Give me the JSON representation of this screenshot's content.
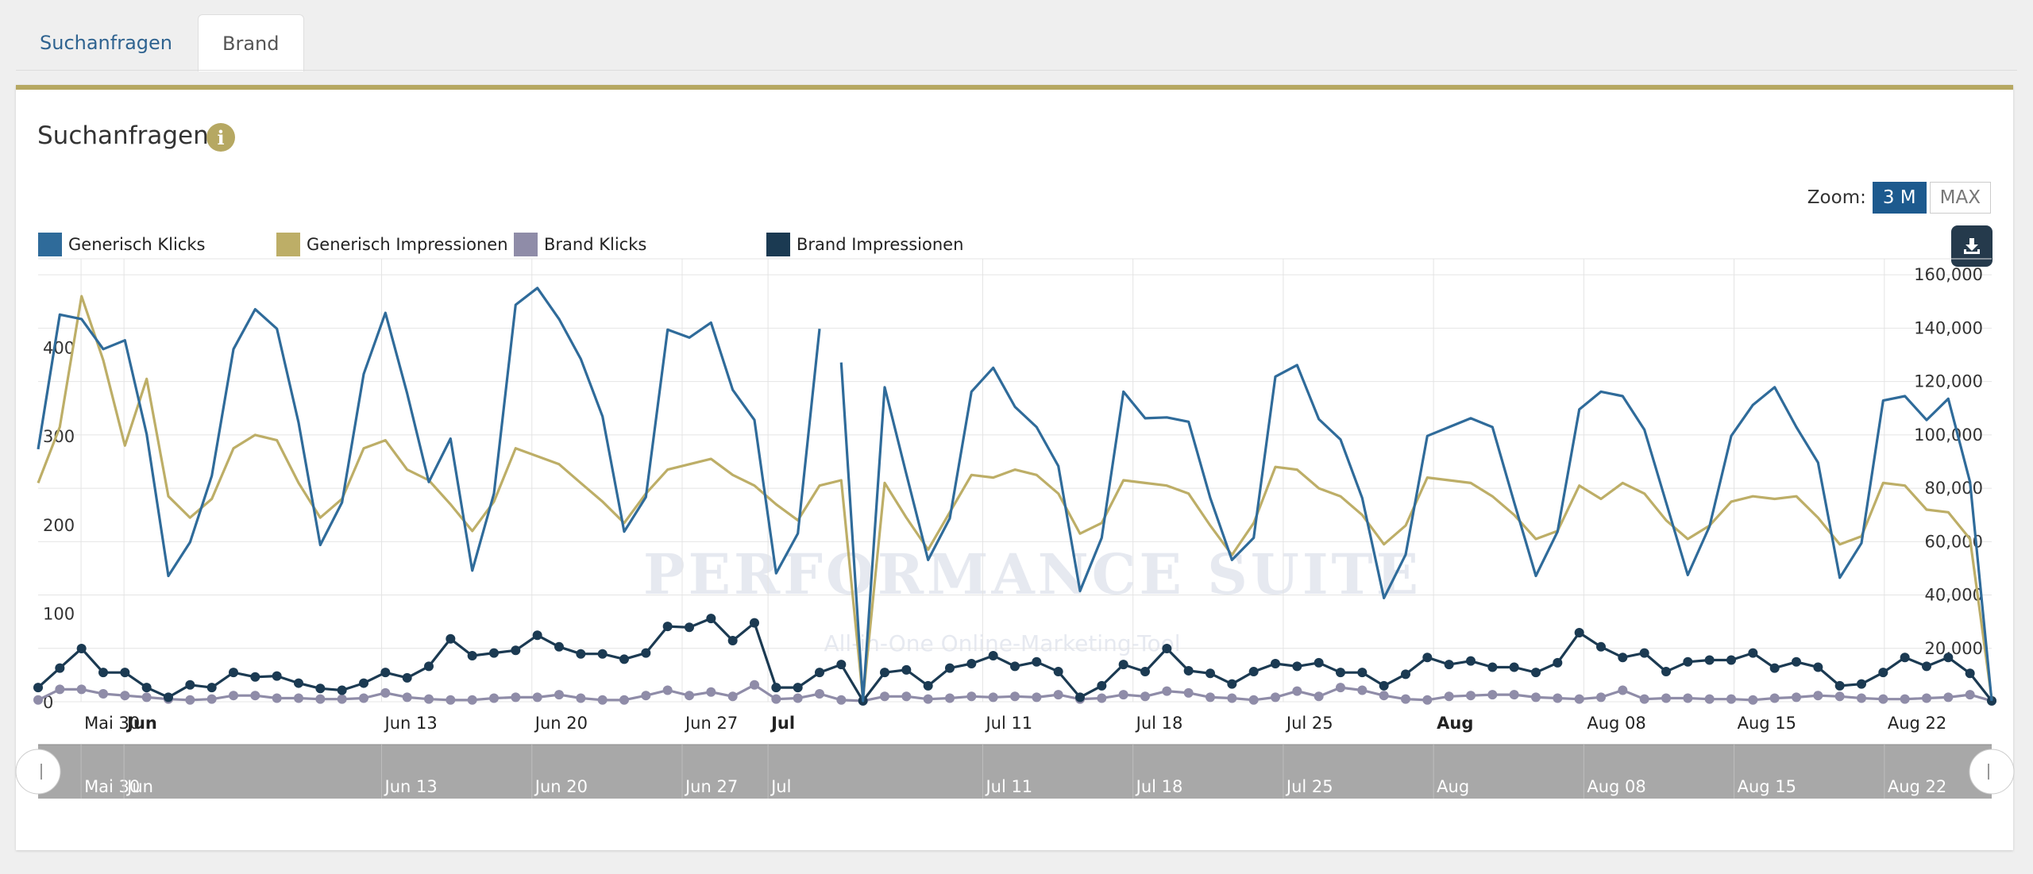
{
  "tabs": [
    {
      "label": "Suchanfragen",
      "active": false
    },
    {
      "label": "Brand",
      "active": true
    }
  ],
  "panel": {
    "title": "Suchanfragen",
    "info_icon": "info-icon",
    "zoom_label": "Zoom:",
    "zoom_options": [
      "3 M",
      "MAX"
    ],
    "zoom_selected": "3 M",
    "download_icon": "download-icon"
  },
  "colors": {
    "accent": "#b6a862",
    "generisch_klicks": "#2f6b9a",
    "generisch_impressionen": "#bdae67",
    "brand_klicks": "#8f8ca8",
    "brand_impressionen": "#1b3a52"
  },
  "watermark": {
    "title": "Performance Suite",
    "subtitle": "All-in-One Online-Marketing-Tool"
  },
  "chart_data": {
    "type": "line",
    "x_start": "2016-05-28",
    "x_end": "2016-08-27",
    "x_labels": [
      {
        "date": "2016-05-30",
        "label": "Mai 30",
        "bold": false
      },
      {
        "date": "2016-06-01",
        "label": "Jun",
        "bold": true
      },
      {
        "date": "2016-06-13",
        "label": "Jun 13",
        "bold": false
      },
      {
        "date": "2016-06-20",
        "label": "Jun 20",
        "bold": false
      },
      {
        "date": "2016-06-27",
        "label": "Jun 27",
        "bold": false
      },
      {
        "date": "2016-07-01",
        "label": "Jul",
        "bold": true
      },
      {
        "date": "2016-07-11",
        "label": "Jul 11",
        "bold": false
      },
      {
        "date": "2016-07-18",
        "label": "Jul 18",
        "bold": false
      },
      {
        "date": "2016-07-25",
        "label": "Jul 25",
        "bold": false
      },
      {
        "date": "2016-08-01",
        "label": "Aug",
        "bold": true
      },
      {
        "date": "2016-08-08",
        "label": "Aug 08",
        "bold": false
      },
      {
        "date": "2016-08-15",
        "label": "Aug 15",
        "bold": false
      },
      {
        "date": "2016-08-22",
        "label": "Aug 22",
        "bold": false
      }
    ],
    "left_axis": {
      "ticks": [
        "0",
        "100",
        "200",
        "300",
        "400"
      ],
      "range": [
        0,
        500
      ]
    },
    "right_axis": {
      "ticks": [
        "20,000",
        "40,000",
        "60,000",
        "80,000",
        "100,000",
        "120,000",
        "140,000",
        "160,000"
      ],
      "range": [
        0,
        166000
      ]
    },
    "legend": [
      "Generisch Klicks",
      "Generisch Impressionen",
      "Brand Klicks",
      "Brand Impressionen"
    ],
    "navigator_labels": [
      "Mai 30",
      "Jun",
      "Jun 13",
      "Jun 20",
      "Jun 27",
      "Jul",
      "Jul 11",
      "Jul 18",
      "Jul 25",
      "Aug",
      "Aug 08",
      "Aug 15",
      "Aug 22"
    ],
    "series": [
      {
        "name": "Generisch Klicks",
        "axis": "left",
        "markers": false,
        "values": [
          285,
          437,
          432,
          398,
          408,
          302,
          142,
          180,
          255,
          398,
          443,
          421,
          315,
          177,
          225,
          370,
          439,
          348,
          248,
          297,
          148,
          235,
          448,
          467,
          432,
          387,
          322,
          192,
          231,
          420,
          411,
          428,
          352,
          318,
          145,
          190,
          421,
          383,
          1,
          355,
          257,
          160,
          207,
          350,
          377,
          333,
          310,
          266,
          125,
          185,
          350,
          320,
          321,
          316,
          230,
          160,
          185,
          367,
          380,
          319,
          296,
          230,
          117,
          166,
          300,
          310,
          320,
          310,
          225,
          142,
          192,
          330,
          350,
          345,
          307,
          225,
          143,
          198,
          300,
          335,
          355,
          310,
          270,
          140,
          179,
          340,
          345,
          318,
          342,
          248,
          1
        ],
        "breaks": [
          37
        ]
      },
      {
        "name": "Generisch Impressionen",
        "axis": "right",
        "markers": false,
        "values": [
          82000,
          103000,
          152000,
          128000,
          96000,
          121000,
          77000,
          69000,
          76000,
          95000,
          100000,
          98000,
          82000,
          69000,
          76000,
          95000,
          98000,
          87000,
          83000,
          74000,
          64000,
          75000,
          95000,
          92000,
          89000,
          82000,
          75000,
          67000,
          78000,
          87000,
          89000,
          91000,
          85000,
          81000,
          74000,
          68000,
          81000,
          83000,
          1000,
          82000,
          69000,
          57000,
          71000,
          85000,
          84000,
          87000,
          85000,
          78000,
          63000,
          67000,
          83000,
          82000,
          81000,
          78000,
          66000,
          55000,
          67000,
          88000,
          87000,
          80000,
          77000,
          70000,
          59000,
          66000,
          84000,
          83000,
          82000,
          77000,
          70000,
          61000,
          64000,
          81000,
          76000,
          82000,
          78000,
          68000,
          61000,
          66000,
          75000,
          77000,
          76000,
          77000,
          69000,
          59000,
          62000,
          82000,
          81000,
          72000,
          71000,
          61000,
          1000
        ]
      },
      {
        "name": "Brand Klicks",
        "axis": "left",
        "markers": true,
        "values": [
          2,
          14,
          14,
          9,
          7,
          5,
          3,
          2,
          3,
          7,
          7,
          4,
          4,
          3,
          3,
          4,
          10,
          5,
          3,
          2,
          2,
          4,
          5,
          5,
          8,
          4,
          2,
          2,
          7,
          13,
          7,
          11,
          6,
          19,
          3,
          4,
          9,
          2,
          1,
          6,
          6,
          3,
          4,
          6,
          5,
          6,
          5,
          8,
          3,
          4,
          8,
          6,
          12,
          10,
          5,
          4,
          2,
          5,
          12,
          6,
          16,
          13,
          7,
          3,
          2,
          6,
          7,
          8,
          8,
          5,
          4,
          3,
          5,
          13,
          3,
          4,
          4,
          3,
          3,
          2,
          4,
          5,
          7,
          6,
          4,
          3,
          3,
          4,
          5,
          8,
          1
        ]
      },
      {
        "name": "Brand Impressionen",
        "axis": "left",
        "markers": true,
        "values": [
          16,
          38,
          60,
          33,
          33,
          16,
          5,
          19,
          16,
          33,
          28,
          29,
          21,
          15,
          13,
          21,
          33,
          27,
          40,
          71,
          52,
          55,
          58,
          75,
          62,
          54,
          54,
          48,
          55,
          85,
          84,
          94,
          69,
          89,
          16,
          16,
          33,
          42,
          1,
          33,
          36,
          18,
          38,
          43,
          52,
          40,
          45,
          34,
          5,
          18,
          42,
          34,
          60,
          35,
          32,
          20,
          34,
          43,
          40,
          44,
          33,
          33,
          18,
          31,
          50,
          42,
          46,
          39,
          39,
          33,
          44,
          78,
          62,
          50,
          55,
          34,
          45,
          47,
          47,
          55,
          38,
          45,
          39,
          18,
          20,
          33,
          50,
          40,
          50,
          32,
          1
        ]
      }
    ]
  }
}
